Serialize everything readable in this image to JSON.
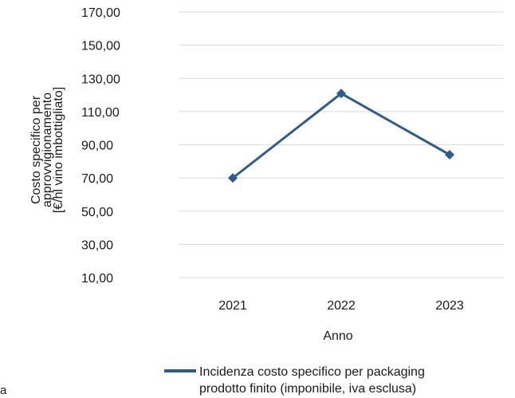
{
  "chart_data": {
    "type": "line",
    "categories": [
      "2021",
      "2022",
      "2023"
    ],
    "series": [
      {
        "name_lines": [
          "Incidenza costo specifico per packaging",
          "prodotto finito (imponibile, iva esclusa)"
        ],
        "values": [
          70.0,
          120.9,
          84.0
        ],
        "color": "#2e5c8a"
      }
    ],
    "xlabel": "Anno",
    "ylabel_lines": [
      "Costo specifico per",
      "approvvigionamento",
      "[€/hl vino imbottigliato]"
    ],
    "ylim": [
      -10,
      170
    ],
    "yticks": [
      "170,00",
      "150,00",
      "130,00",
      "110,00",
      "90,00",
      "70,00",
      "50,00",
      "30,00",
      "10,00"
    ],
    "ytick_values": [
      170,
      150,
      130,
      110,
      90,
      70,
      50,
      30,
      10
    ],
    "grid": true,
    "legend_position": "bottom"
  },
  "edge_fragment": "a",
  "gridline_color": "#d9d9d9"
}
